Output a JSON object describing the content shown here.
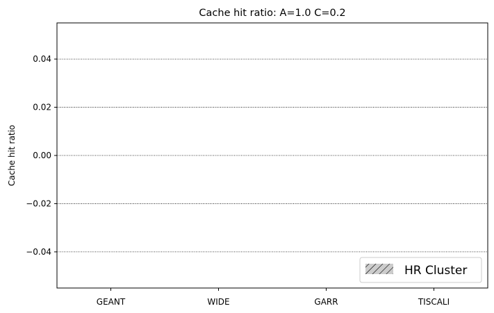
{
  "chart_data": {
    "type": "bar",
    "title": "Cache hit ratio: A=1.0 C=0.2",
    "xlabel": "",
    "ylabel": "Cache hit ratio",
    "categories": [
      "GEANT",
      "WIDE",
      "GARR",
      "TISCALI"
    ],
    "series": [
      {
        "name": "HR Cluster",
        "values": [
          0,
          0,
          0,
          0
        ],
        "color": "#cccccc",
        "hatch": "//"
      }
    ],
    "ylim": [
      -0.055,
      0.055
    ],
    "yticks": [
      0.04,
      0.02,
      0.0,
      -0.02,
      -0.04
    ],
    "ytick_labels": [
      "0.04",
      "0.02",
      "0.00",
      "−0.02",
      "−0.04"
    ],
    "grid": "y-dotted",
    "legend_position": "lower-right"
  }
}
